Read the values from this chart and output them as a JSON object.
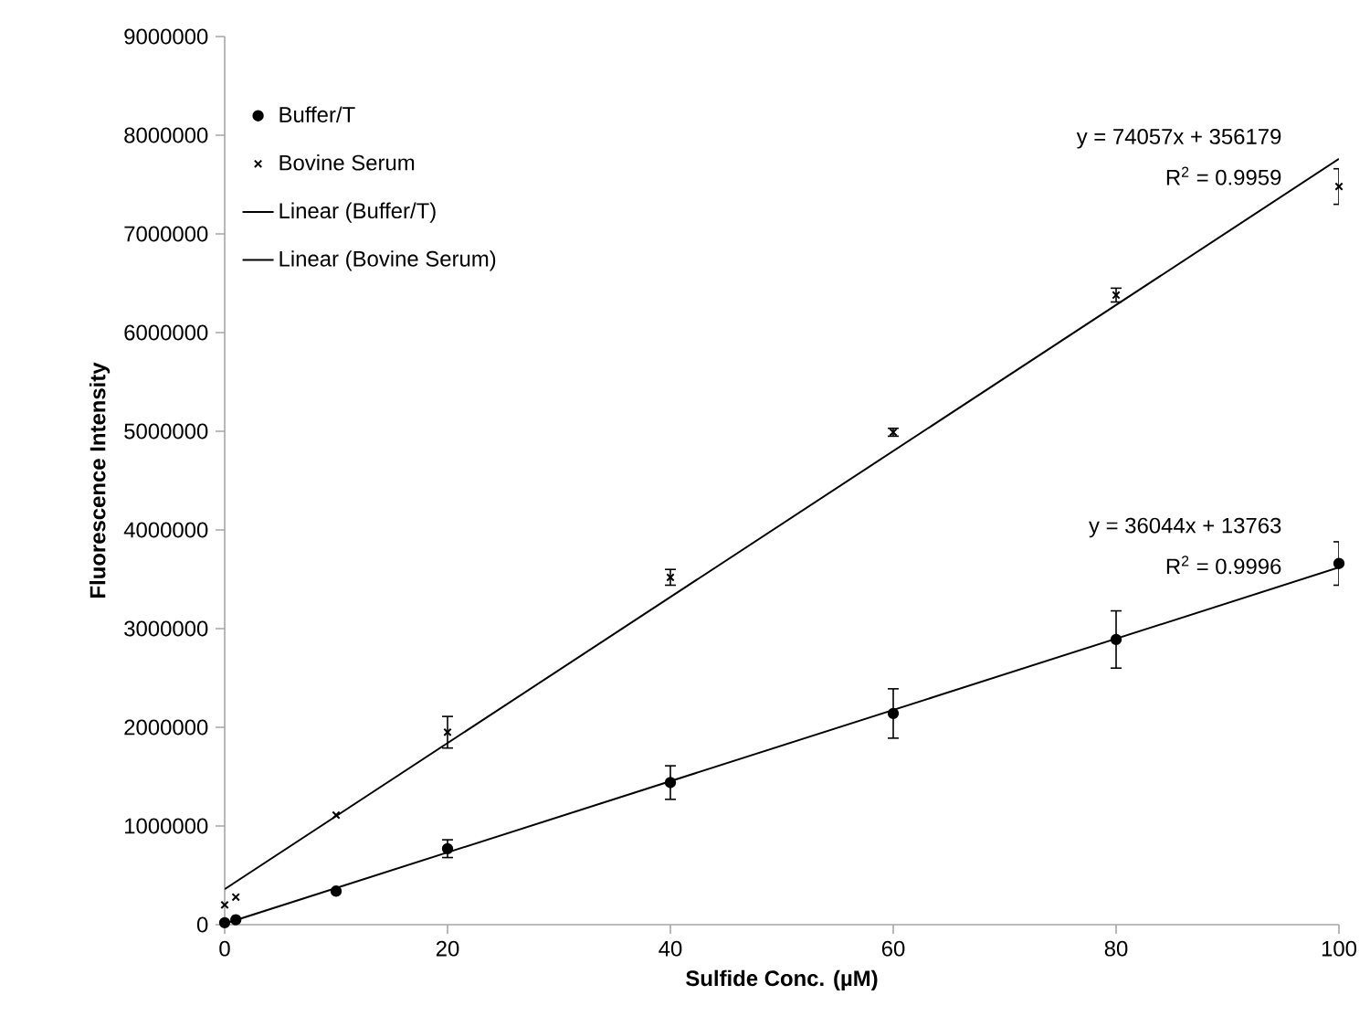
{
  "chart_data": {
    "type": "scatter",
    "xlabel": "Sulfide Conc. (µM)",
    "ylabel": "Fluorescence Intensity",
    "xlim": [
      0,
      100
    ],
    "xticks": [
      0,
      20,
      40,
      60,
      80,
      100
    ],
    "ylim": [
      0,
      9000000
    ],
    "yticks": [
      0,
      1000000,
      2000000,
      3000000,
      4000000,
      5000000,
      6000000,
      7000000,
      8000000,
      9000000
    ],
    "grid": false,
    "legend": "top left",
    "series": [
      {
        "name": "Buffer/T",
        "marker": "circle",
        "color": "#000000",
        "x": [
          0,
          1,
          10,
          20,
          40,
          60,
          80,
          100
        ],
        "values": [
          20000,
          50000,
          340000,
          770000,
          1440000,
          2140000,
          2890000,
          3660000
        ],
        "errors": [
          null,
          null,
          null,
          90000,
          170000,
          250000,
          290000,
          220000
        ]
      },
      {
        "name": "Bovine Serum",
        "marker": "cross",
        "color": "#000000",
        "x": [
          0,
          1,
          10,
          20,
          40,
          60,
          80,
          100
        ],
        "values": [
          200000,
          280000,
          1110000,
          1950000,
          3520000,
          4990000,
          6380000,
          7480000
        ],
        "errors": [
          null,
          null,
          null,
          160000,
          80000,
          40000,
          70000,
          180000
        ]
      },
      {
        "name": "Linear (Buffer/T)",
        "type": "line",
        "marker": "none",
        "line_style": "solid",
        "color": "#000000",
        "x": [
          0,
          100
        ],
        "values": [
          10000,
          3620000
        ]
      },
      {
        "name": "Linear (Bovine Serum)",
        "type": "line",
        "marker": "none",
        "line_style": "solid",
        "color": "#000000",
        "x": [
          0,
          100
        ],
        "values": [
          360000,
          7760000
        ]
      }
    ],
    "annotations": [
      "y = 74057x + 356179",
      "R$^{2}$ = 0.9959",
      "y = 36044x + 13763",
      "R$^{2}$ = 0.9996"
    ]
  }
}
